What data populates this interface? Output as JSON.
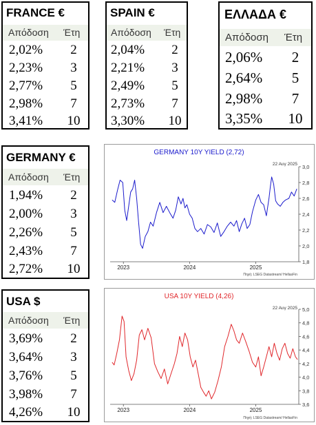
{
  "tables": {
    "france": {
      "title": "FRANCE €",
      "col_yield": "Απόδοση",
      "col_years": "Έτη",
      "rows": [
        {
          "yield": "2,02%",
          "years": "2"
        },
        {
          "yield": "2,23%",
          "years": "3"
        },
        {
          "yield": "2,77%",
          "years": "5"
        },
        {
          "yield": "2,98%",
          "years": "7"
        },
        {
          "yield": "3,41%",
          "years": "10"
        }
      ]
    },
    "spain": {
      "title": "SPAIN €",
      "col_yield": "Απόδοση",
      "col_years": "Έτη",
      "rows": [
        {
          "yield": "2,04%",
          "years": "2"
        },
        {
          "yield": "2,21%",
          "years": "3"
        },
        {
          "yield": "2,49%",
          "years": "5"
        },
        {
          "yield": "2,73%",
          "years": "7"
        },
        {
          "yield": "3,30%",
          "years": "10"
        }
      ]
    },
    "greece": {
      "title": "ΕΛΛΑΔΑ €",
      "col_yield": "Απόδοση",
      "col_years": "Έτη",
      "rows": [
        {
          "yield": "2,06%",
          "years": "2"
        },
        {
          "yield": "2,64%",
          "years": "5"
        },
        {
          "yield": "2,98%",
          "years": "7"
        },
        {
          "yield": "3,35%",
          "years": "10"
        }
      ]
    },
    "germany": {
      "title": "GERMANY €",
      "col_yield": "Απόδοση",
      "col_years": "Έτη",
      "rows": [
        {
          "yield": "1,94%",
          "years": "2"
        },
        {
          "yield": "2,00%",
          "years": "3"
        },
        {
          "yield": "2,26%",
          "years": "5"
        },
        {
          "yield": "2,43%",
          "years": "7"
        },
        {
          "yield": "2,72%",
          "years": "10"
        }
      ]
    },
    "usa": {
      "title": "USA $",
      "col_yield": "Απόδοση",
      "col_years": "Έτη",
      "rows": [
        {
          "yield": "3,69%",
          "years": "2"
        },
        {
          "yield": "3,64%",
          "years": "3"
        },
        {
          "yield": "3,76%",
          "years": "5"
        },
        {
          "yield": "3,98%",
          "years": "7"
        },
        {
          "yield": "4,26%",
          "years": "10"
        }
      ]
    }
  },
  "chart_data": [
    {
      "type": "line",
      "title": "GERMANY 10Y YIELD  (2,72)",
      "date": "22 Αυγ 2025",
      "source": "Πηγή: LSEG Datastream/ HellasFin",
      "color": "#1a1acc",
      "ylim": [
        1.8,
        3.0
      ],
      "yticks": [
        "3,0",
        "2,8",
        "2,6",
        "2,4",
        "2,2",
        "2,0",
        "1,8"
      ],
      "xlim": [
        2022.8,
        2025.65
      ],
      "xticks": [
        {
          "label": "2023",
          "x": 2023.0
        },
        {
          "label": "2024",
          "x": 2024.0
        },
        {
          "label": "2025",
          "x": 2025.0
        }
      ],
      "grid": false,
      "series": [
        {
          "x": [
            2022.83,
            2022.87,
            2022.91,
            2022.95,
            2022.99,
            2023.02,
            2023.05,
            2023.08,
            2023.11,
            2023.14,
            2023.17,
            2023.2,
            2023.23,
            2023.26,
            2023.29,
            2023.33,
            2023.37,
            2023.41,
            2023.45,
            2023.5,
            2023.55,
            2023.6,
            2023.65,
            2023.7,
            2023.75,
            2023.79,
            2023.83,
            2023.87,
            2023.9,
            2023.93,
            2023.96,
            2024.0,
            2024.04,
            2024.08,
            2024.12,
            2024.17,
            2024.22,
            2024.27,
            2024.32,
            2024.37,
            2024.42,
            2024.47,
            2024.52,
            2024.57,
            2024.62,
            2024.67,
            2024.71,
            2024.75,
            2024.79,
            2024.83,
            2024.87,
            2024.91,
            2024.95,
            2025.0,
            2025.04,
            2025.08,
            2025.12,
            2025.16,
            2025.2,
            2025.22,
            2025.24,
            2025.27,
            2025.3,
            2025.33,
            2025.37,
            2025.41,
            2025.45,
            2025.5,
            2025.54,
            2025.58,
            2025.62
          ],
          "y": [
            2.58,
            2.55,
            2.7,
            2.83,
            2.8,
            2.45,
            2.32,
            2.5,
            2.68,
            2.72,
            2.83,
            2.6,
            2.3,
            2.02,
            1.97,
            2.12,
            2.18,
            2.3,
            2.25,
            2.42,
            2.55,
            2.42,
            2.5,
            2.42,
            2.35,
            2.45,
            2.62,
            2.53,
            2.6,
            2.48,
            2.52,
            2.4,
            2.35,
            2.22,
            2.18,
            2.22,
            2.15,
            2.27,
            2.24,
            2.17,
            2.29,
            2.12,
            2.18,
            2.25,
            2.3,
            2.25,
            2.32,
            2.18,
            2.28,
            2.35,
            2.22,
            2.27,
            2.43,
            2.58,
            2.65,
            2.55,
            2.52,
            2.38,
            2.6,
            2.75,
            2.87,
            2.78,
            2.57,
            2.53,
            2.5,
            2.55,
            2.58,
            2.6,
            2.68,
            2.63,
            2.72
          ]
        }
      ]
    },
    {
      "type": "line",
      "title": "USA 10Y YIELD  (4,26)",
      "date": "22 Αυγ 2025",
      "source": "Πηγή: LSEG Datastream/ HellasFin",
      "color": "#e0262a",
      "ylim": [
        3.6,
        5.0
      ],
      "yticks": [
        "5,0",
        "4,8",
        "4,6",
        "4,4",
        "4,2",
        "4,0",
        "3,8",
        "3,6"
      ],
      "xlim": [
        2022.8,
        2025.65
      ],
      "xticks": [
        {
          "label": "2023",
          "x": 2023.0
        },
        {
          "label": "2024",
          "x": 2024.0
        },
        {
          "label": "2025",
          "x": 2025.0
        }
      ],
      "grid": false,
      "series": [
        {
          "x": [
            2022.83,
            2022.86,
            2022.9,
            2022.94,
            2022.98,
            2023.01,
            2023.04,
            2023.08,
            2023.12,
            2023.16,
            2023.2,
            2023.24,
            2023.28,
            2023.32,
            2023.37,
            2023.42,
            2023.47,
            2023.52,
            2023.57,
            2023.62,
            2023.67,
            2023.72,
            2023.77,
            2023.81,
            2023.85,
            2023.89,
            2023.93,
            2023.97,
            2024.01,
            2024.05,
            2024.09,
            2024.13,
            2024.17,
            2024.21,
            2024.25,
            2024.29,
            2024.33,
            2024.38,
            2024.43,
            2024.48,
            2024.53,
            2024.58,
            2024.63,
            2024.67,
            2024.71,
            2024.75,
            2024.8,
            2024.85,
            2024.9,
            2024.95,
            2025.0,
            2025.04,
            2025.08,
            2025.12,
            2025.16,
            2025.2,
            2025.24,
            2025.28,
            2025.32,
            2025.36,
            2025.4,
            2025.44,
            2025.48,
            2025.52,
            2025.56,
            2025.6,
            2025.63
          ],
          "y": [
            4.22,
            4.18,
            4.35,
            4.55,
            4.9,
            4.82,
            4.3,
            4.1,
            3.95,
            4.05,
            4.25,
            4.62,
            4.7,
            4.55,
            4.72,
            4.58,
            4.2,
            4.08,
            3.98,
            4.12,
            3.9,
            4.05,
            4.2,
            4.35,
            4.6,
            4.45,
            4.65,
            4.55,
            4.3,
            4.15,
            4.25,
            4.05,
            3.85,
            3.78,
            3.72,
            3.8,
            3.68,
            3.78,
            3.95,
            4.15,
            4.45,
            4.6,
            4.78,
            4.68,
            4.55,
            4.5,
            4.65,
            4.52,
            4.38,
            4.22,
            4.15,
            4.3,
            4.02,
            4.15,
            4.3,
            4.45,
            4.3,
            4.5,
            4.35,
            4.25,
            4.42,
            4.5,
            4.35,
            4.28,
            4.42,
            4.3,
            4.26
          ]
        }
      ]
    }
  ]
}
